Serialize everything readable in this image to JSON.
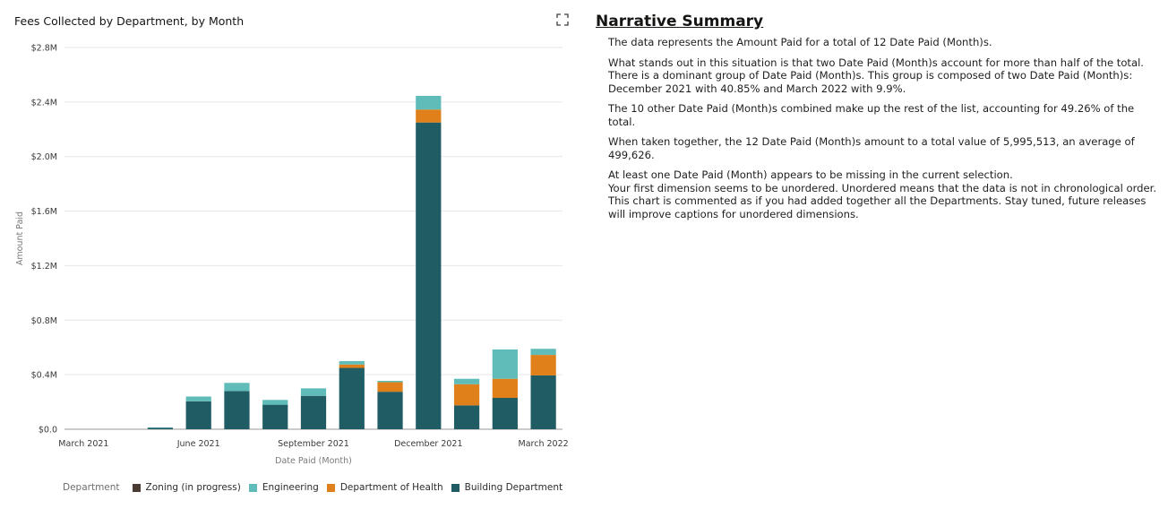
{
  "chart_title": "Fees Collected by Department, by Month",
  "narrative": {
    "heading": "Narrative Summary",
    "p1": "The data represents the Amount Paid for a total of 12 Date Paid (Month)s.",
    "p2": "What stands out in this situation is that two Date Paid (Month)s account for more than half of the total. There is a dominant group of Date Paid (Month)s. This group is composed of two Date Paid (Month)s: December 2021 with 40.85% and March 2022 with 9.9%.",
    "p3": "The 10 other Date Paid (Month)s combined make up the rest of the list, accounting for 49.26% of the total.",
    "p4": "When taken together, the 12 Date Paid (Month)s amount to a total value of 5,995,513, an average of 499,626.",
    "p5a": "At least one Date Paid (Month) appears to be missing in the current selection.",
    "p5b": "Your first dimension seems to be unordered. Unordered means that the data is not in chronological order. This chart is commented as if you had added together all the Departments. Stay tuned, future releases will improve captions for unordered dimensions."
  },
  "legend": {
    "title": "Department",
    "items": [
      {
        "label": "Zoning (in progress)",
        "color": "#4a3b33"
      },
      {
        "label": "Engineering",
        "color": "#5fbcb8"
      },
      {
        "label": "Department of Health",
        "color": "#e0801a"
      },
      {
        "label": "Building Department",
        "color": "#1f5c63"
      }
    ]
  },
  "chart_data": {
    "type": "bar",
    "stacked": true,
    "title": "Fees Collected by Department, by Month",
    "xlabel": "Date Paid (Month)",
    "ylabel": "Amount Paid",
    "ylim": [
      0,
      2800000
    ],
    "y_ticks": [
      {
        "value": 0,
        "label": "$0.0"
      },
      {
        "value": 400000,
        "label": "$0.4M"
      },
      {
        "value": 800000,
        "label": "$0.8M"
      },
      {
        "value": 1200000,
        "label": "$1.2M"
      },
      {
        "value": 1600000,
        "label": "$1.6M"
      },
      {
        "value": 2000000,
        "label": "$2.0M"
      },
      {
        "value": 2400000,
        "label": "$2.4M"
      },
      {
        "value": 2800000,
        "label": "$2.8M"
      }
    ],
    "categories": [
      "March 2021",
      "April 2021",
      "May 2021",
      "June 2021",
      "July 2021",
      "August 2021",
      "September 2021",
      "October 2021",
      "November 2021",
      "December 2021",
      "January 2022",
      "February 2022",
      "March 2022"
    ],
    "x_tick_labels": [
      {
        "index": 0,
        "label": "March 2021"
      },
      {
        "index": 3,
        "label": "June 2021"
      },
      {
        "index": 6,
        "label": "September 2021"
      },
      {
        "index": 9,
        "label": "December 2021"
      },
      {
        "index": 12,
        "label": "March 2022"
      }
    ],
    "series": [
      {
        "name": "Building Department",
        "color": "#1f5c63",
        "values": [
          null,
          0,
          10000,
          205000,
          280000,
          180000,
          245000,
          450000,
          275000,
          2250000,
          175000,
          230000,
          395000
        ]
      },
      {
        "name": "Department of Health",
        "color": "#e0801a",
        "values": [
          null,
          0,
          0,
          0,
          0,
          0,
          0,
          25000,
          70000,
          95000,
          155000,
          140000,
          150000
        ]
      },
      {
        "name": "Engineering",
        "color": "#5fbcb8",
        "values": [
          null,
          0,
          3000,
          35000,
          60000,
          35000,
          55000,
          25000,
          10000,
          100000,
          40000,
          215000,
          45000
        ]
      },
      {
        "name": "Zoning (in progress)",
        "color": "#4a3b33",
        "values": [
          null,
          0,
          0,
          0,
          0,
          0,
          0,
          0,
          0,
          0,
          0,
          0,
          0
        ]
      }
    ],
    "grid": true,
    "legend_position": "bottom"
  }
}
